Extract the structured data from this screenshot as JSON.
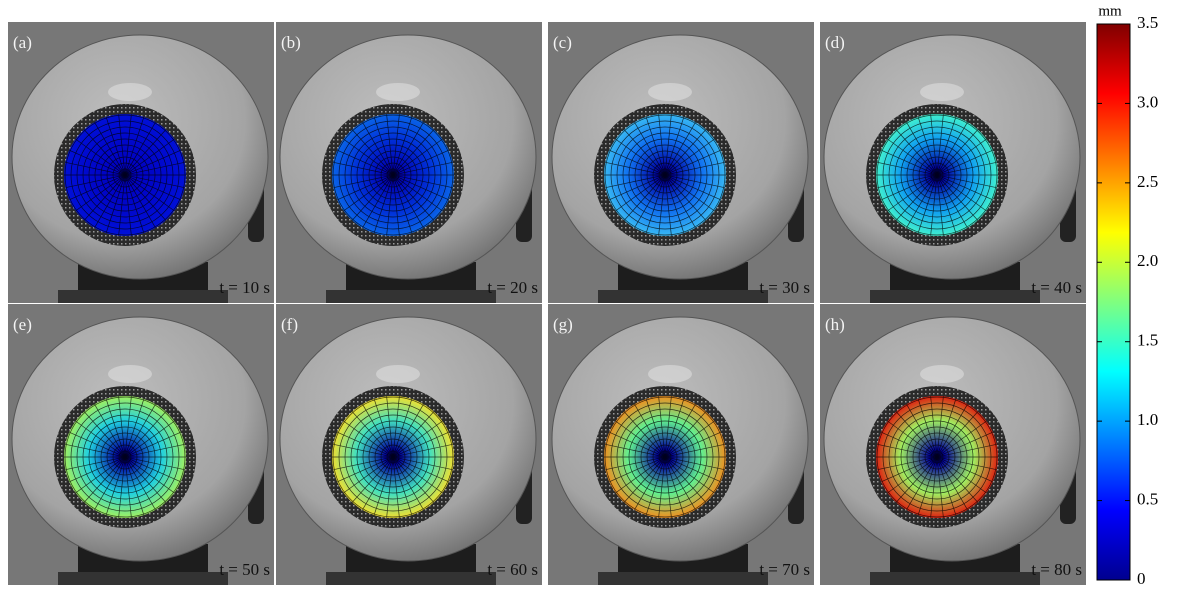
{
  "panels": [
    {
      "label": "(a)",
      "time": "t = 10 s"
    },
    {
      "label": "(b)",
      "time": "t = 20 s"
    },
    {
      "label": "(c)",
      "time": "t = 30 s"
    },
    {
      "label": "(d)",
      "time": "t = 40 s"
    },
    {
      "label": "(e)",
      "time": "t = 50 s"
    },
    {
      "label": "(f)",
      "time": "t = 60 s"
    },
    {
      "label": "(g)",
      "time": "t = 70 s"
    },
    {
      "label": "(h)",
      "time": "t = 80 s"
    }
  ],
  "colorbar": {
    "unit": "mm",
    "lim": [
      0,
      3.5
    ],
    "ticks": [
      0,
      0.5,
      {
        "value": 1,
        "label": "1.0"
      },
      1.5,
      {
        "value": 2,
        "label": "2.0"
      },
      2.5,
      {
        "value": 3,
        "label": "3.0"
      },
      3.5
    ]
  }
}
